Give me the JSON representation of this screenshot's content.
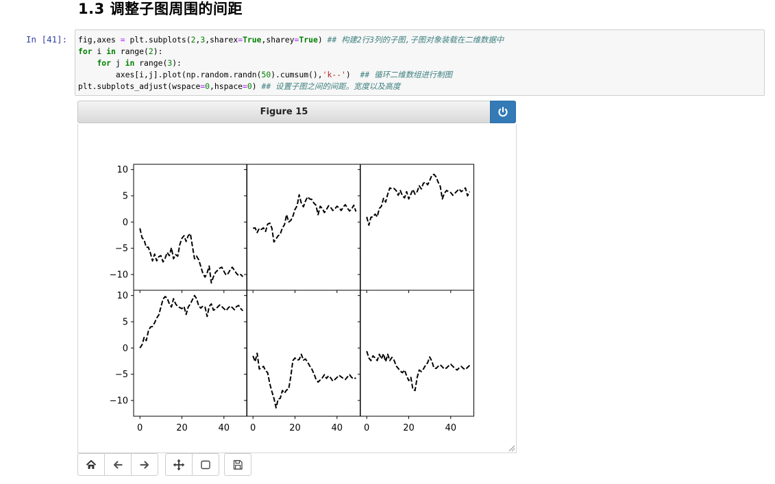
{
  "section": {
    "title": "1.3  调整子图周围的间距"
  },
  "cell": {
    "prompt": "In  [41]:",
    "code": {
      "line1": {
        "pre": "fig,axes ",
        "eq": "=",
        "mid1": " plt.subplots(",
        "n2": "2",
        "c1": ",",
        "n3": "3",
        "mid2": ",sharex",
        "eq2": "=",
        "t1": "True",
        "mid3": ",sharey",
        "eq3": "=",
        "t2": "True",
        "end": ") ",
        "comment": "## 构建2行3列的子图,子图对象装载在二维数据中"
      },
      "line2": {
        "kw_for": "for",
        "var": " i ",
        "kw_in": "in",
        "fn": " range(",
        "num": "2",
        "end": "):"
      },
      "line3": {
        "indent": "    ",
        "kw_for": "for",
        "var": " j ",
        "kw_in": "in",
        "fn": " range(",
        "num": "3",
        "end": "):"
      },
      "line4": {
        "indent": "        ",
        "pre": "axes[i,j].plot(np.random.randn(",
        "num": "50",
        "mid": ").cumsum(),",
        "str": "'k--'",
        "end": ")  ",
        "comment": "## 循环二维数组进行制图"
      },
      "line5": {
        "pre": "plt.subplots_adjust(wspace",
        "eq": "=",
        "n1": "0",
        "mid": ",hspace",
        "eq2": "=",
        "n2": "0",
        "end": ") ",
        "comment": "## 设置子图之间的间距。宽度以及高度"
      }
    }
  },
  "figure": {
    "title": "Figure 15",
    "toolbar": [
      "home-icon",
      "back-arrow-icon",
      "forward-arrow-icon",
      "pan-move-icon",
      "zoom-rect-icon",
      "save-icon"
    ]
  },
  "chart_data": {
    "type": "line",
    "layout": "2x3 subplots, sharex, sharey, wspace=0, hspace=0",
    "style": "black dashed ('k--')",
    "xlim": [
      -3,
      51
    ],
    "ylim": [
      -13,
      11
    ],
    "x_ticks": [
      0,
      20,
      40
    ],
    "x_tick_labels": [
      "0",
      "20",
      "40"
    ],
    "y_ticks": [
      10,
      5,
      0,
      -5,
      -10
    ],
    "y_tick_labels": [
      "10",
      "5",
      "0",
      "−5",
      "−10"
    ],
    "series": [
      {
        "values": [
          -1.2,
          -3,
          -3.4,
          -4.8,
          -4.8,
          -5.9,
          -7.4,
          -6.1,
          -7.4,
          -6.6,
          -6.4,
          -7.6,
          -6.9,
          -5.8,
          -6.4,
          -4.9,
          -7,
          -6.2,
          -6.5,
          -4.3,
          -3.1,
          -2.6,
          -3.7,
          -2.6,
          -2.2,
          -4.6,
          -7,
          -6.5,
          -7.2,
          -8.5,
          -9.8,
          -10.5,
          -9.7,
          -8.4,
          -11.6,
          -10.4,
          -9.6,
          -9.2,
          -8.8,
          -8.6,
          -9.4,
          -10.1,
          -9.8,
          -9.1,
          -8.6,
          -9.2,
          -9.8,
          -10.2,
          -10,
          -10.4
        ]
      },
      {
        "values": [
          -1.2,
          -1.1,
          -2,
          -1.2,
          -1.4,
          -1.1,
          -1.8,
          -0.4,
          -0.2,
          -1.2,
          -3.8,
          -3.2,
          -2.6,
          -2.3,
          -1.1,
          -0.5,
          1.4,
          0,
          0.3,
          1.1,
          2.4,
          3.1,
          5.2,
          3.6,
          2.9,
          4,
          4.8,
          4.4,
          4.3,
          3.6,
          3.2,
          1.4,
          3,
          2.6,
          1.8,
          2.4,
          3.1,
          2.8,
          2.2,
          2.5,
          3,
          2.7,
          2.2,
          2.9,
          3.3,
          2.6,
          2.1,
          2.5,
          3.2,
          2
        ]
      },
      {
        "values": [
          1,
          -0.6,
          0.9,
          1,
          1.5,
          1,
          2.6,
          3,
          4.5,
          3.8,
          5.3,
          6.5,
          6.3,
          6.4,
          6,
          5.1,
          6,
          5,
          4.6,
          5.8,
          4.4,
          5.3,
          6.2,
          5.3,
          5.8,
          6.9,
          6.3,
          7.4,
          7.6,
          7.1,
          7.9,
          8.9,
          9.1,
          8.6,
          7.6,
          6.8,
          4.4,
          5.5,
          6,
          5.8,
          5.6,
          5.1,
          5.5,
          5.9,
          6.3,
          5.8,
          6.1,
          6.5,
          5,
          5.8
        ]
      },
      {
        "values": [
          0,
          0.6,
          2,
          1.4,
          3.2,
          4,
          4.1,
          4.8,
          5.7,
          6.3,
          7.8,
          9.3,
          9.8,
          9.5,
          8.4,
          7.8,
          9.4,
          8.4,
          7.9,
          7.7,
          7.5,
          7.9,
          6.4,
          7.8,
          8.4,
          9.2,
          10,
          9.4,
          8,
          7.6,
          8,
          7.8,
          6,
          7.9,
          8.4,
          7.2,
          7.4,
          7.8,
          8.2,
          7.9,
          7.5,
          7.1,
          7.6,
          8,
          7.7,
          7.3,
          7.9,
          8.1,
          7.5,
          7.1
        ]
      },
      {
        "values": [
          -1.5,
          -2.6,
          -1,
          -4,
          -3.8,
          -3.5,
          -4.3,
          -4.7,
          -6.8,
          -8.3,
          -9.6,
          -11.4,
          -9.7,
          -9.6,
          -8.1,
          -8.6,
          -8,
          -7.8,
          -5.4,
          -2.4,
          -1.9,
          -2.3,
          -2.2,
          -1.2,
          -2.3,
          -2.1,
          -2.7,
          -3.4,
          -4,
          -4.9,
          -5.9,
          -6.5,
          -6.1,
          -5.7,
          -5.1,
          -5.8,
          -5.3,
          -5.7,
          -6.3,
          -6,
          -5.6,
          -5.2,
          -5.5,
          -5.8,
          -6,
          -5.5,
          -5.1,
          -5.6,
          -5.9,
          -5.7
        ]
      },
      {
        "values": [
          -0.6,
          -1.9,
          -2.4,
          -1.5,
          -1.9,
          -2.4,
          -1.2,
          -2.1,
          -1.1,
          -2.6,
          -1.2,
          -2.4,
          -1.8,
          -2.3,
          -3.4,
          -3.9,
          -4.4,
          -4.7,
          -4.2,
          -5.3,
          -6.2,
          -5.6,
          -7.9,
          -8.1,
          -5.6,
          -4.2,
          -4.5,
          -4,
          -3.3,
          -2.8,
          -1.7,
          -2.5,
          -3.8,
          -3.9,
          -3.5,
          -3.2,
          -3.6,
          -4,
          -3.8,
          -3.4,
          -3.1,
          -3.5,
          -3.9,
          -4.2,
          -3.8,
          -3.5,
          -3.9,
          -4.1,
          -3.7,
          -3.3
        ]
      }
    ]
  }
}
